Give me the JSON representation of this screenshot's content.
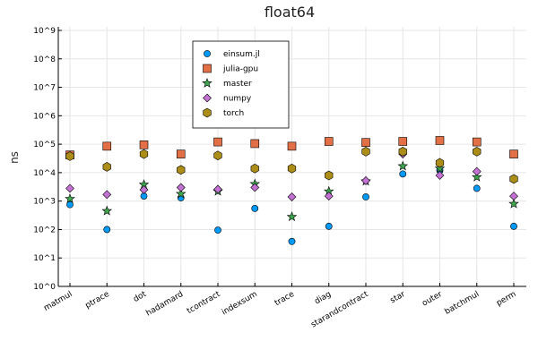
{
  "chart_data": {
    "type": "scatter",
    "title": "float64",
    "xlabel": "",
    "ylabel": "ns",
    "yscale": "log10",
    "ylim": [
      1,
      1000000000
    ],
    "ytick_labels": [
      "10^0",
      "10^1",
      "10^2",
      "10^3",
      "10^4",
      "10^5",
      "10^6",
      "10^7",
      "10^8",
      "10^9"
    ],
    "grid": true,
    "legend_position": "top-center",
    "categories": [
      "matmul",
      "ptrace",
      "dot",
      "hadamard",
      "tcontract",
      "indexsum",
      "trace",
      "diag",
      "starandcontract",
      "star",
      "outer",
      "batchmul",
      "perm"
    ],
    "series": [
      {
        "name": "einsum.jl",
        "marker": "circle",
        "color": "#009AFA",
        "values": [
          750,
          100,
          1500,
          1300,
          95,
          550,
          38,
          130,
          1400,
          9000,
          12000,
          2800,
          130
        ]
      },
      {
        "name": "julia-gpu",
        "marker": "square",
        "color": "#E36F47",
        "values": [
          42000,
          85000,
          95000,
          45000,
          120000,
          105000,
          85000,
          125000,
          115000,
          125000,
          135000,
          120000,
          45000
        ]
      },
      {
        "name": "master",
        "marker": "star",
        "color": "#3EA44E",
        "values": [
          1200,
          450,
          3800,
          1800,
          2200,
          4000,
          280,
          2200,
          5000,
          17000,
          14000,
          7000,
          800
        ]
      },
      {
        "name": "numpy",
        "marker": "diamond",
        "color": "#C371D2",
        "values": [
          2800,
          1700,
          2500,
          3000,
          2600,
          3000,
          1400,
          1500,
          5200,
          45000,
          8000,
          11000,
          1500
        ]
      },
      {
        "name": "torch",
        "marker": "hexagon",
        "color": "#AC8D18",
        "values": [
          38000,
          16000,
          45000,
          12500,
          40000,
          14000,
          14000,
          8000,
          55000,
          55000,
          22000,
          55000,
          6000
        ]
      }
    ]
  }
}
